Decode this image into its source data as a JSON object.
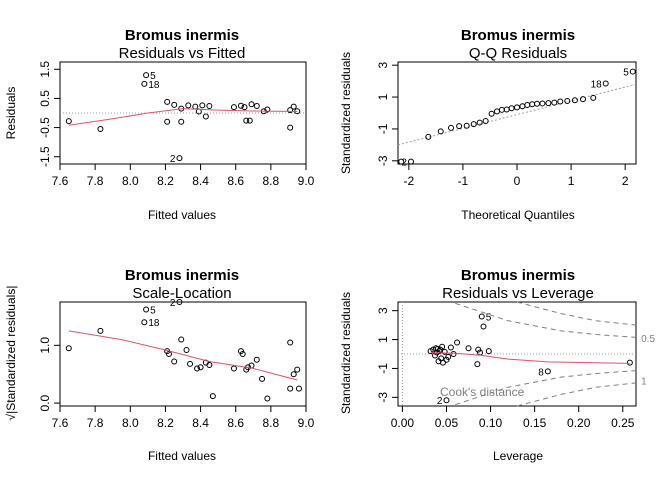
{
  "chart_data": [
    {
      "type": "scatter",
      "title": "Bromus inermis",
      "subtitle": "Residuals vs Fitted",
      "xlabel": "Fitted values",
      "ylabel": "Residuals",
      "xlim": [
        7.6,
        9.0
      ],
      "ylim": [
        -1.75,
        1.75
      ],
      "xticks": [
        "7.6",
        "7.8",
        "8.0",
        "8.2",
        "8.4",
        "8.6",
        "8.8",
        "9.0"
      ],
      "yticks": [
        "-1.5",
        "-0.5",
        "0.5",
        "1.5"
      ],
      "ytick_values": [
        -1.5,
        -0.5,
        0.5,
        1.5
      ],
      "x": [
        7.65,
        7.83,
        8.09,
        8.08,
        8.21,
        8.21,
        8.25,
        8.29,
        8.29,
        8.33,
        8.37,
        8.39,
        8.41,
        8.43,
        8.45,
        8.59,
        8.63,
        8.66,
        8.68,
        8.65,
        8.69,
        8.72,
        8.76,
        8.78,
        8.91,
        8.91,
        8.93,
        8.95,
        8.28
      ],
      "y": [
        -0.28,
        -0.55,
        1.3,
        1.0,
        0.38,
        -0.3,
        0.28,
        0.15,
        -0.3,
        0.26,
        0.22,
        0.05,
        0.26,
        -0.12,
        0.24,
        0.2,
        0.25,
        -0.26,
        -0.26,
        0.2,
        0.3,
        0.24,
        0.06,
        0.12,
        -0.5,
        0.1,
        0.22,
        0.06,
        -1.55
      ],
      "smooth": {
        "x": [
          7.65,
          7.9,
          8.1,
          8.3,
          8.5,
          8.7,
          8.95
        ],
        "y": [
          -0.42,
          -0.2,
          0.0,
          0.15,
          0.1,
          0.07,
          0.05
        ]
      },
      "refline_y": 0,
      "point_labels": [
        {
          "text": "5",
          "x": 8.09,
          "y": 1.3
        },
        {
          "text": "18",
          "x": 8.08,
          "y": 1.0
        },
        {
          "text": "2",
          "x": 8.28,
          "y": -1.55
        }
      ]
    },
    {
      "type": "scatter",
      "title": "Bromus inermis",
      "subtitle": "Q-Q Residuals",
      "xlabel": "Theoretical Quantiles",
      "ylabel": "Standardized residuals",
      "xlim": [
        -2.2,
        2.2
      ],
      "ylim": [
        -3.2,
        3.2
      ],
      "xticks": [
        "-2",
        "-1",
        "0",
        "1",
        "2"
      ],
      "xtick_values": [
        -2,
        -1,
        0,
        1,
        2
      ],
      "yticks": [
        "-3",
        "-1",
        "1",
        "3"
      ],
      "ytick_values": [
        -3,
        -1,
        1,
        3
      ],
      "x": [
        -2.14,
        -1.96,
        -1.64,
        -1.41,
        -1.22,
        -1.07,
        -0.93,
        -0.8,
        -0.69,
        -0.58,
        -0.47,
        -0.37,
        -0.28,
        -0.19,
        -0.1,
        0.0,
        0.1,
        0.19,
        0.28,
        0.37,
        0.47,
        0.58,
        0.69,
        0.8,
        0.93,
        1.07,
        1.22,
        1.41,
        1.64,
        2.14
      ],
      "y": [
        -3.05,
        -3.05,
        -1.5,
        -1.15,
        -0.93,
        -0.82,
        -0.8,
        -0.7,
        -0.6,
        -0.5,
        -0.05,
        0.1,
        0.2,
        0.22,
        0.3,
        0.35,
        0.42,
        0.5,
        0.55,
        0.58,
        0.6,
        0.62,
        0.65,
        0.72,
        0.75,
        0.8,
        0.87,
        0.95,
        1.85,
        2.6
      ],
      "refline": {
        "x1": -2.2,
        "y1": -2.0,
        "x2": 2.2,
        "y2": 1.8
      },
      "point_labels": [
        {
          "text": "2",
          "x": -1.96,
          "y": -3.05
        },
        {
          "text": "18",
          "x": 1.64,
          "y": 1.85
        },
        {
          "text": "5",
          "x": 2.14,
          "y": 2.6
        }
      ]
    },
    {
      "type": "scatter",
      "title": "Bromus inermis",
      "subtitle": "Scale-Location",
      "xlabel": "Fitted values",
      "ylabel": "√|Standardized residuals|",
      "xlim": [
        7.6,
        9.0
      ],
      "ylim": [
        -0.05,
        1.75
      ],
      "xticks": [
        "7.6",
        "7.8",
        "8.0",
        "8.2",
        "8.4",
        "8.6",
        "8.8",
        "9.0"
      ],
      "yticks": [
        "0.0",
        "1.0"
      ],
      "ytick_values": [
        0.0,
        1.0
      ],
      "x": [
        7.65,
        7.83,
        8.09,
        8.08,
        8.21,
        8.22,
        8.25,
        8.29,
        8.32,
        8.34,
        8.38,
        8.4,
        8.43,
        8.45,
        8.47,
        8.59,
        8.63,
        8.64,
        8.67,
        8.66,
        8.69,
        8.72,
        8.75,
        8.78,
        8.91,
        8.91,
        8.93,
        8.95,
        8.96,
        8.28
      ],
      "y": [
        0.95,
        1.25,
        1.62,
        1.4,
        0.9,
        0.85,
        0.72,
        1.1,
        0.92,
        0.68,
        0.6,
        0.62,
        0.7,
        0.66,
        0.12,
        0.6,
        0.9,
        0.85,
        0.62,
        0.58,
        0.65,
        0.75,
        0.42,
        0.08,
        0.25,
        1.05,
        0.5,
        0.58,
        0.25,
        1.75
      ],
      "smooth": {
        "x": [
          7.65,
          7.95,
          8.2,
          8.45,
          8.7,
          8.95
        ],
        "y": [
          1.25,
          1.1,
          0.92,
          0.72,
          0.6,
          0.4
        ]
      },
      "point_labels": [
        {
          "text": "5",
          "x": 8.09,
          "y": 1.62
        },
        {
          "text": "18",
          "x": 8.08,
          "y": 1.4
        },
        {
          "text": "2",
          "x": 8.28,
          "y": 1.75
        }
      ]
    },
    {
      "type": "scatter",
      "title": "Bromus inermis",
      "subtitle": "Residuals vs Leverage",
      "xlabel": "Leverage",
      "ylabel": "Standardized residuals",
      "xlim": [
        -0.005,
        0.265
      ],
      "ylim": [
        -3.6,
        3.6
      ],
      "xticks": [
        "0.00",
        "0.05",
        "0.10",
        "0.15",
        "0.20",
        "0.25"
      ],
      "xtick_values": [
        0.0,
        0.05,
        0.1,
        0.15,
        0.2,
        0.25
      ],
      "yticks": [
        "-3",
        "-1",
        "1",
        "3"
      ],
      "ytick_values": [
        -3,
        -1,
        1,
        3
      ],
      "x": [
        0.032,
        0.035,
        0.037,
        0.038,
        0.039,
        0.04,
        0.041,
        0.042,
        0.043,
        0.044,
        0.045,
        0.046,
        0.048,
        0.05,
        0.052,
        0.055,
        0.058,
        0.062,
        0.075,
        0.085,
        0.086,
        0.088,
        0.09,
        0.092,
        0.098,
        0.165,
        0.258,
        0.05
      ],
      "y": [
        0.2,
        0.3,
        -0.1,
        0.4,
        0.1,
        0.35,
        -0.5,
        0.2,
        0.3,
        -0.3,
        0.5,
        -0.6,
        0.15,
        -0.4,
        -0.2,
        0.45,
        0.0,
        0.8,
        0.4,
        -0.7,
        0.3,
        0.1,
        2.6,
        1.9,
        0.2,
        -1.2,
        -0.6,
        -3.2
      ],
      "smooth": {
        "x": [
          0.032,
          0.06,
          0.09,
          0.12,
          0.165,
          0.258
        ],
        "y": [
          0.1,
          0.05,
          -0.1,
          -0.35,
          -0.55,
          -0.65
        ]
      },
      "refline_y": 0,
      "refline_x": 0,
      "cook_labels": [
        {
          "text": "0.5",
          "x": 0.264,
          "y": 1.1
        },
        {
          "text": "1",
          "x": 0.264,
          "y": -1.85
        }
      ],
      "cook_caption": "Cook's distance",
      "point_labels": [
        {
          "text": "5",
          "x": 0.09,
          "y": 2.6
        },
        {
          "text": "8",
          "x": 0.165,
          "y": -1.2
        },
        {
          "text": "2",
          "x": 0.05,
          "y": -3.2
        }
      ]
    }
  ]
}
